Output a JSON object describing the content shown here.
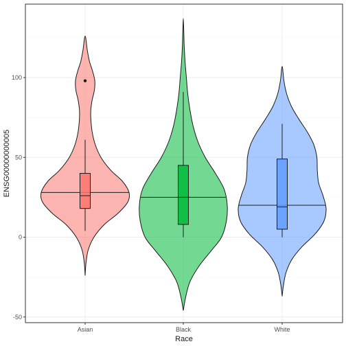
{
  "chart_data": {
    "type": "violin",
    "xlabel": "Race",
    "ylabel": "ENSG00000000005",
    "categories": [
      "Asian",
      "Black",
      "White"
    ],
    "yticks": [
      -50,
      0,
      50,
      100
    ],
    "ylim": [
      -55,
      145
    ],
    "grid": true,
    "legend": "none",
    "colors": {
      "Asian": "#F8766D",
      "Black": "#00BA38",
      "White": "#619CFF"
    },
    "violins": [
      {
        "category": "Asian",
        "min": -24,
        "max": 126,
        "median_line": 28,
        "profile": [
          [
            -24,
            0.0
          ],
          [
            -16,
            0.02
          ],
          [
            -8,
            0.07
          ],
          [
            0,
            0.2
          ],
          [
            8,
            0.44
          ],
          [
            15,
            0.75
          ],
          [
            22,
            0.97
          ],
          [
            28,
            1.0
          ],
          [
            35,
            0.85
          ],
          [
            42,
            0.58
          ],
          [
            50,
            0.36
          ],
          [
            58,
            0.23
          ],
          [
            66,
            0.16
          ],
          [
            74,
            0.13
          ],
          [
            80,
            0.13
          ],
          [
            86,
            0.16
          ],
          [
            92,
            0.21
          ],
          [
            98,
            0.22
          ],
          [
            104,
            0.17
          ],
          [
            110,
            0.1
          ],
          [
            117,
            0.05
          ],
          [
            126,
            0.0
          ]
        ],
        "box": {
          "q1": 18,
          "median": 26,
          "q3": 40,
          "whisker_low": 4,
          "whisker_high": 61
        },
        "outliers": [
          98
        ]
      },
      {
        "category": "Black",
        "min": -46,
        "max": 137,
        "median_line": 25,
        "profile": [
          [
            -46,
            0.0
          ],
          [
            -38,
            0.05
          ],
          [
            -28,
            0.15
          ],
          [
            -18,
            0.36
          ],
          [
            -8,
            0.65
          ],
          [
            0,
            0.87
          ],
          [
            10,
            0.98
          ],
          [
            20,
            1.0
          ],
          [
            30,
            0.93
          ],
          [
            40,
            0.73
          ],
          [
            50,
            0.5
          ],
          [
            60,
            0.33
          ],
          [
            70,
            0.22
          ],
          [
            80,
            0.15
          ],
          [
            90,
            0.1
          ],
          [
            100,
            0.07
          ],
          [
            110,
            0.04
          ],
          [
            120,
            0.02
          ],
          [
            130,
            0.01
          ],
          [
            137,
            0.0
          ]
        ],
        "box": {
          "q1": 8,
          "median": 25,
          "q3": 45,
          "whisker_low": 0,
          "whisker_high": 91
        },
        "outliers": []
      },
      {
        "category": "White",
        "min": -37,
        "max": 107,
        "median_line": 20,
        "profile": [
          [
            -37,
            0.0
          ],
          [
            -30,
            0.03
          ],
          [
            -22,
            0.09
          ],
          [
            -14,
            0.22
          ],
          [
            -6,
            0.45
          ],
          [
            2,
            0.75
          ],
          [
            10,
            0.95
          ],
          [
            18,
            1.0
          ],
          [
            26,
            0.93
          ],
          [
            34,
            0.83
          ],
          [
            42,
            0.8
          ],
          [
            50,
            0.79
          ],
          [
            58,
            0.72
          ],
          [
            66,
            0.57
          ],
          [
            74,
            0.38
          ],
          [
            82,
            0.21
          ],
          [
            90,
            0.1
          ],
          [
            98,
            0.04
          ],
          [
            107,
            0.0
          ]
        ],
        "box": {
          "q1": 5,
          "median": 19,
          "q3": 49,
          "whisker_low": 0,
          "whisker_high": 71
        },
        "outliers": []
      }
    ]
  }
}
